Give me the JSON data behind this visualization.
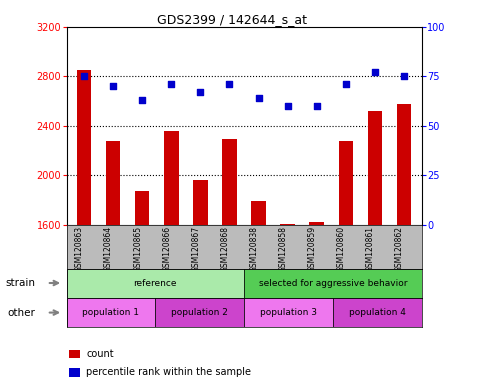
{
  "title": "GDS2399 / 142644_s_at",
  "samples": [
    "GSM120863",
    "GSM120864",
    "GSM120865",
    "GSM120866",
    "GSM120867",
    "GSM120868",
    "GSM120838",
    "GSM120858",
    "GSM120859",
    "GSM120860",
    "GSM120861",
    "GSM120862"
  ],
  "counts": [
    2850,
    2280,
    1870,
    2360,
    1960,
    2290,
    1790,
    1607,
    1625,
    2280,
    2520,
    2580
  ],
  "percentiles": [
    75,
    70,
    63,
    71,
    67,
    71,
    64,
    60,
    60,
    71,
    77,
    75
  ],
  "ylim_left": [
    1600,
    3200
  ],
  "ylim_right": [
    0,
    100
  ],
  "yticks_left": [
    1600,
    2000,
    2400,
    2800,
    3200
  ],
  "yticks_right": [
    0,
    25,
    50,
    75,
    100
  ],
  "bar_color": "#cc0000",
  "dot_color": "#0000cc",
  "strain_groups": [
    {
      "label": "reference",
      "start": 0,
      "end": 6,
      "color": "#aaeaaa"
    },
    {
      "label": "selected for aggressive behavior",
      "start": 6,
      "end": 12,
      "color": "#55cc55"
    }
  ],
  "other_groups": [
    {
      "label": "population 1",
      "start": 0,
      "end": 3,
      "color": "#ee77ee"
    },
    {
      "label": "population 2",
      "start": 3,
      "end": 6,
      "color": "#cc44cc"
    },
    {
      "label": "population 3",
      "start": 6,
      "end": 9,
      "color": "#ee77ee"
    },
    {
      "label": "population 4",
      "start": 9,
      "end": 12,
      "color": "#cc44cc"
    }
  ],
  "legend_items": [
    {
      "label": "count",
      "color": "#cc0000"
    },
    {
      "label": "percentile rank within the sample",
      "color": "#0000cc"
    }
  ],
  "bar_width": 0.5,
  "background_color": "#ffffff",
  "tick_area_bg": "#bbbbbb",
  "n_samples": 12,
  "n_ref": 6
}
